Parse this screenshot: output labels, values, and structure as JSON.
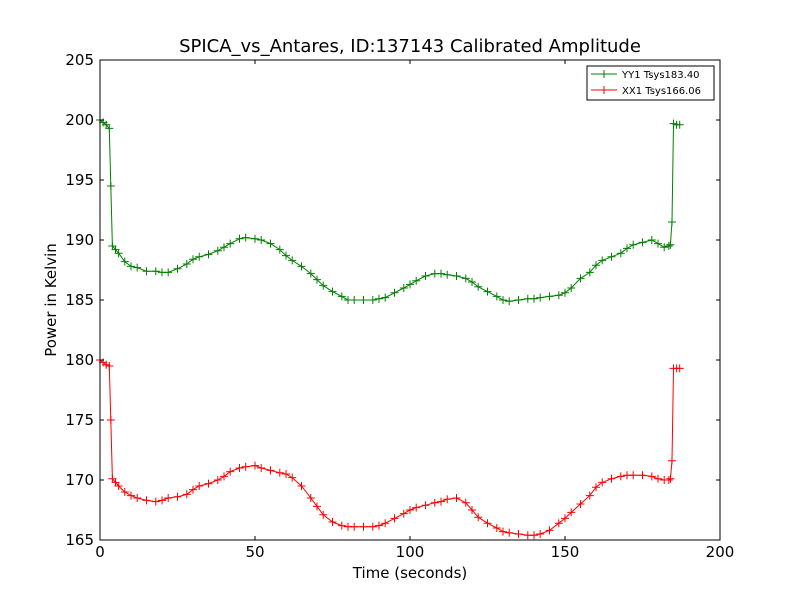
{
  "chart_data": {
    "type": "line",
    "title": "SPICA_vs_Antares, ID:137143 Calibrated Amplitude",
    "xlabel": "Time (seconds)",
    "ylabel": "Power in Kelvin",
    "xlim": [
      0,
      200
    ],
    "ylim": [
      165,
      205
    ],
    "xticks": [
      0,
      50,
      100,
      150,
      200
    ],
    "xtick_labels": [
      "0",
      "50",
      "100",
      "150",
      "200"
    ],
    "yticks": [
      165,
      170,
      175,
      180,
      185,
      190,
      195,
      200,
      205
    ],
    "ytick_labels": [
      "165",
      "170",
      "175",
      "180",
      "185",
      "190",
      "195",
      "200",
      "205"
    ],
    "grid": false,
    "legend_position": "top-right",
    "marker": "+",
    "series": [
      {
        "name": "YY1 Tsys183.40",
        "color": "#008000",
        "x": [
          0,
          1,
          2,
          3,
          3.5,
          4,
          5,
          6,
          8,
          10,
          12,
          15,
          18,
          20,
          22,
          25,
          28,
          30,
          32,
          35,
          38,
          40,
          42,
          45,
          47,
          50,
          52,
          55,
          58,
          60,
          62,
          65,
          68,
          70,
          72,
          75,
          78,
          80,
          82,
          85,
          88,
          90,
          92,
          95,
          98,
          100,
          102,
          105,
          108,
          110,
          112,
          115,
          118,
          120,
          122,
          125,
          128,
          130,
          132,
          135,
          138,
          140,
          142,
          145,
          148,
          150,
          152,
          155,
          158,
          160,
          162,
          165,
          168,
          170,
          172,
          175,
          178,
          180,
          182,
          183.5,
          184,
          184.5,
          185,
          186,
          187
        ],
        "y": [
          200.0,
          199.8,
          199.6,
          199.3,
          194.5,
          189.5,
          189.2,
          188.9,
          188.2,
          187.8,
          187.7,
          187.4,
          187.4,
          187.3,
          187.3,
          187.6,
          188.0,
          188.4,
          188.6,
          188.8,
          189.1,
          189.4,
          189.7,
          190.1,
          190.2,
          190.1,
          190.0,
          189.7,
          189.2,
          188.7,
          188.3,
          187.8,
          187.2,
          186.7,
          186.2,
          185.7,
          185.3,
          185.0,
          185.0,
          185.0,
          185.0,
          185.1,
          185.2,
          185.6,
          186.0,
          186.3,
          186.6,
          187.0,
          187.2,
          187.2,
          187.1,
          187.0,
          186.8,
          186.5,
          186.1,
          185.7,
          185.3,
          185.0,
          184.9,
          185.0,
          185.1,
          185.1,
          185.2,
          185.3,
          185.4,
          185.6,
          186.0,
          186.8,
          187.3,
          187.9,
          188.3,
          188.6,
          188.9,
          189.3,
          189.6,
          189.8,
          190.0,
          189.7,
          189.4,
          189.5,
          189.6,
          191.5,
          199.7,
          199.6,
          199.6
        ]
      },
      {
        "name": "XX1 Tsys166.06",
        "color": "#ff0000",
        "x": [
          0,
          1,
          2,
          3,
          3.5,
          4,
          5,
          6,
          8,
          10,
          12,
          15,
          18,
          20,
          22,
          25,
          28,
          30,
          32,
          35,
          38,
          40,
          42,
          45,
          47,
          50,
          52,
          55,
          58,
          60,
          62,
          65,
          68,
          70,
          72,
          75,
          78,
          80,
          82,
          85,
          88,
          90,
          92,
          95,
          98,
          100,
          102,
          105,
          108,
          110,
          112,
          115,
          118,
          120,
          122,
          125,
          128,
          130,
          132,
          135,
          138,
          140,
          142,
          145,
          148,
          150,
          152,
          155,
          158,
          160,
          162,
          165,
          168,
          170,
          172,
          175,
          178,
          180,
          182,
          183.5,
          184,
          184.5,
          185,
          186,
          187
        ],
        "y": [
          180.0,
          179.8,
          179.6,
          179.5,
          175.0,
          170.1,
          169.8,
          169.5,
          169.0,
          168.7,
          168.5,
          168.3,
          168.2,
          168.3,
          168.5,
          168.6,
          168.8,
          169.2,
          169.5,
          169.7,
          170.0,
          170.3,
          170.7,
          171.0,
          171.1,
          171.2,
          171.0,
          170.8,
          170.6,
          170.5,
          170.2,
          169.5,
          168.5,
          167.8,
          167.1,
          166.5,
          166.2,
          166.1,
          166.1,
          166.1,
          166.1,
          166.2,
          166.4,
          166.8,
          167.2,
          167.5,
          167.7,
          167.9,
          168.1,
          168.2,
          168.4,
          168.5,
          168.1,
          167.5,
          166.9,
          166.4,
          166.0,
          165.7,
          165.6,
          165.5,
          165.4,
          165.4,
          165.5,
          165.8,
          166.4,
          166.8,
          167.3,
          168.0,
          168.7,
          169.4,
          169.8,
          170.1,
          170.3,
          170.4,
          170.4,
          170.4,
          170.3,
          170.1,
          170.0,
          170.0,
          170.1,
          171.6,
          179.3,
          179.3,
          179.3
        ]
      }
    ]
  }
}
